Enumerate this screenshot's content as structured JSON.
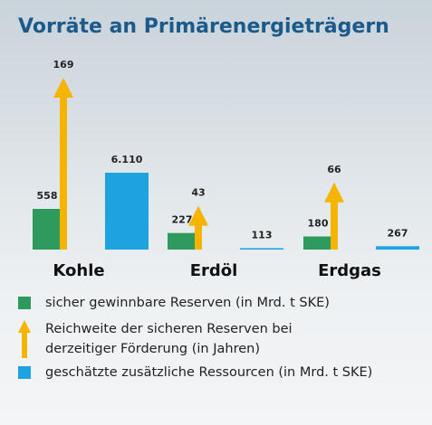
{
  "chart_data": {
    "type": "infographic-bar",
    "title": "Vorräte an Primärenergieträgern",
    "categories": [
      "Kohle",
      "Erdöl",
      "Erdgas"
    ],
    "series": [
      {
        "name": "sicher gewinnbare Reserven (in Mrd. t SKE)",
        "color": "#2e9a5e",
        "shape": "bar",
        "values": [
          558,
          227,
          180
        ]
      },
      {
        "name": "Reichweite der sicheren Reserven bei derzeitiger Förderung (in Jahren)",
        "color": "#f4b400",
        "shape": "arrow",
        "values": [
          169,
          43,
          66
        ]
      },
      {
        "name": "geschätzte zusätzliche Ressourcen (in Mrd. t SKE)",
        "color": "#1fa3e0",
        "shape": "bar",
        "values": [
          6110,
          113,
          267
        ],
        "value_labels": [
          "6.110",
          "113",
          "267"
        ]
      }
    ]
  }
}
